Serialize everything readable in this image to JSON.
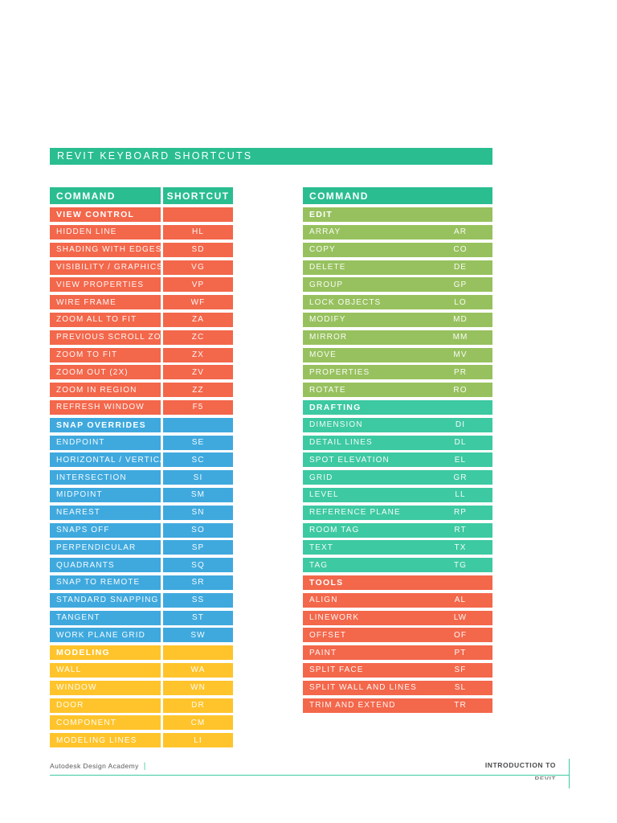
{
  "title": "REVIT KEYBOARD SHORTCUTS",
  "colors": {
    "teal": "#2ABD90",
    "mint": "#3DC9A2",
    "orange": "#F3674B",
    "blue": "#3FA9DE",
    "yellow": "#FFC42B",
    "green": "#97C15E"
  },
  "left_table": {
    "headers": [
      "COMMAND",
      "SHORTCUT"
    ],
    "header_color": "teal",
    "sections": [
      {
        "name": "VIEW CONTROL",
        "color": "orange",
        "rows": [
          {
            "command": "HIDDEN LINE",
            "shortcut": "HL"
          },
          {
            "command": "SHADING WITH EDGES",
            "shortcut": "SD"
          },
          {
            "command": "VISIBILITY / GRAPHICS",
            "shortcut": "VG"
          },
          {
            "command": "VIEW PROPERTIES",
            "shortcut": "VP"
          },
          {
            "command": "WIRE FRAME",
            "shortcut": "WF"
          },
          {
            "command": "ZOOM ALL TO FIT",
            "shortcut": "ZA"
          },
          {
            "command": "PREVIOUS SCROLL ZOOM",
            "shortcut": "ZC"
          },
          {
            "command": "ZOOM TO FIT",
            "shortcut": "ZX"
          },
          {
            "command": "ZOOM OUT (2X)",
            "shortcut": "ZV"
          },
          {
            "command": "ZOOM IN REGION",
            "shortcut": "ZZ"
          },
          {
            "command": "REFRESH WINDOW",
            "shortcut": "F5"
          }
        ]
      },
      {
        "name": "SNAP OVERRIDES",
        "color": "blue",
        "rows": [
          {
            "command": "ENDPOINT",
            "shortcut": "SE"
          },
          {
            "command": "HORIZONTAL / VERTICAL",
            "shortcut": "SC"
          },
          {
            "command": "INTERSECTION",
            "shortcut": "SI"
          },
          {
            "command": "MIDPOINT",
            "shortcut": "SM"
          },
          {
            "command": "NEAREST",
            "shortcut": "SN"
          },
          {
            "command": "SNAPS OFF",
            "shortcut": "SO"
          },
          {
            "command": "PERPENDICULAR",
            "shortcut": "SP"
          },
          {
            "command": "QUADRANTS",
            "shortcut": "SQ"
          },
          {
            "command": "SNAP TO REMOTE",
            "shortcut": "SR"
          },
          {
            "command": "STANDARD SNAPPING",
            "shortcut": "SS"
          },
          {
            "command": "TANGENT",
            "shortcut": "ST"
          },
          {
            "command": "WORK PLANE GRID",
            "shortcut": "SW"
          }
        ]
      },
      {
        "name": "MODELING",
        "color": "yellow",
        "rows": [
          {
            "command": "WALL",
            "shortcut": "WA"
          },
          {
            "command": "WINDOW",
            "shortcut": "WN"
          },
          {
            "command": "DOOR",
            "shortcut": "DR"
          },
          {
            "command": "COMPONENT",
            "shortcut": "CM"
          },
          {
            "command": "MODELING LINES",
            "shortcut": "LI"
          }
        ]
      }
    ]
  },
  "right_table": {
    "headers": [
      "COMMAND"
    ],
    "header_color": "teal",
    "sections": [
      {
        "name": "EDIT",
        "color": "green",
        "rows": [
          {
            "command": "ARRAY",
            "shortcut": "AR"
          },
          {
            "command": "COPY",
            "shortcut": "CO"
          },
          {
            "command": "DELETE",
            "shortcut": "DE"
          },
          {
            "command": "GROUP",
            "shortcut": "GP"
          },
          {
            "command": "LOCK OBJECTS",
            "shortcut": "LO"
          },
          {
            "command": "MODIFY",
            "shortcut": "MD"
          },
          {
            "command": "MIRROR",
            "shortcut": "MM"
          },
          {
            "command": "MOVE",
            "shortcut": "MV"
          },
          {
            "command": "PROPERTIES",
            "shortcut": "PR"
          },
          {
            "command": "ROTATE",
            "shortcut": "RO"
          }
        ]
      },
      {
        "name": "DRAFTING",
        "color": "mint",
        "rows": [
          {
            "command": "DIMENSION",
            "shortcut": "DI"
          },
          {
            "command": "DETAIL LINES",
            "shortcut": "DL"
          },
          {
            "command": "SPOT ELEVATION",
            "shortcut": "EL"
          },
          {
            "command": "GRID",
            "shortcut": "GR"
          },
          {
            "command": "LEVEL",
            "shortcut": "LL"
          },
          {
            "command": "REFERENCE PLANE",
            "shortcut": "RP"
          },
          {
            "command": "ROOM TAG",
            "shortcut": "RT"
          },
          {
            "command": "TEXT",
            "shortcut": "TX"
          },
          {
            "command": "TAG",
            "shortcut": "TG"
          }
        ]
      },
      {
        "name": "TOOLS",
        "color": "orange",
        "rows": [
          {
            "command": "ALIGN",
            "shortcut": "AL"
          },
          {
            "command": "LINEWORK",
            "shortcut": "LW"
          },
          {
            "command": "OFFSET",
            "shortcut": "OF"
          },
          {
            "command": "PAINT",
            "shortcut": "PT"
          },
          {
            "command": "SPLIT FACE",
            "shortcut": "SF"
          },
          {
            "command": "SPLIT WALL AND LINES",
            "shortcut": "SL"
          },
          {
            "command": "TRIM AND EXTEND",
            "shortcut": "TR"
          }
        ]
      }
    ]
  },
  "footer": {
    "left": "Autodesk Design Academy",
    "divider": "|",
    "right_line1": "INTRODUCTION TO",
    "right_line2": "REVIT"
  }
}
